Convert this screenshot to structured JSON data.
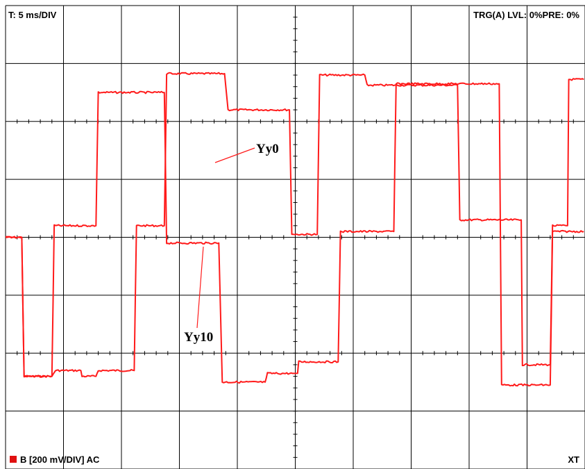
{
  "hud": {
    "timebase": "T: 5 ms/DIV",
    "trigger": "TRG(A) LVL: 0%PRE: 0%",
    "channel": "B [200 mV/DIV] AC",
    "mode": "XT"
  },
  "colors": {
    "trace": "#ff1a1a",
    "grid": "#000000",
    "channel_marker": "#e01010",
    "background": "#ffffff"
  },
  "chart_data": {
    "type": "line",
    "title": "",
    "xlabel": "",
    "ylabel": "",
    "xlim": [
      0,
      50
    ],
    "ylim": [
      -800,
      800
    ],
    "grid": true,
    "divisions": {
      "x": 10,
      "y": 8
    },
    "series": [
      {
        "name": "Yy0",
        "points": [
          [
            0,
            0
          ],
          [
            1.4,
            0
          ],
          [
            1.6,
            -480
          ],
          [
            4.0,
            -480
          ],
          [
            4.3,
            -460
          ],
          [
            6.5,
            -460
          ],
          [
            6.6,
            -480
          ],
          [
            7.8,
            -480
          ],
          [
            8.0,
            -460
          ],
          [
            11.1,
            -460
          ],
          [
            11.3,
            40
          ],
          [
            13.7,
            40
          ],
          [
            13.9,
            565
          ],
          [
            18.9,
            565
          ],
          [
            19.2,
            440
          ],
          [
            24.5,
            440
          ],
          [
            24.7,
            10
          ],
          [
            25.0,
            10
          ],
          [
            26.9,
            10
          ],
          [
            27.1,
            560
          ],
          [
            31.0,
            560
          ],
          [
            31.2,
            525
          ],
          [
            39.0,
            525
          ],
          [
            39.2,
            60
          ],
          [
            44.5,
            60
          ],
          [
            44.6,
            -440
          ],
          [
            47.0,
            -440
          ],
          [
            47.2,
            40
          ],
          [
            48.5,
            40
          ],
          [
            48.6,
            545
          ],
          [
            49.9,
            545
          ]
        ]
      },
      {
        "name": "Yy10",
        "points": [
          [
            0,
            0
          ],
          [
            1.4,
            0
          ],
          [
            1.6,
            -480
          ],
          [
            4.0,
            -480
          ],
          [
            4.2,
            40
          ],
          [
            7.8,
            40
          ],
          [
            8.0,
            500
          ],
          [
            13.7,
            500
          ],
          [
            13.9,
            -20
          ],
          [
            18.4,
            -20
          ],
          [
            18.7,
            -500
          ],
          [
            22.4,
            -500
          ],
          [
            22.6,
            -470
          ],
          [
            24.9,
            -470
          ],
          [
            25.2,
            -470
          ],
          [
            25.3,
            -430
          ],
          [
            28.7,
            -430
          ],
          [
            28.9,
            20
          ],
          [
            33.5,
            20
          ],
          [
            33.7,
            530
          ],
          [
            42.6,
            530
          ],
          [
            42.8,
            -510
          ],
          [
            47.0,
            -510
          ],
          [
            47.2,
            20
          ],
          [
            49.9,
            20
          ]
        ]
      }
    ],
    "annotations": [
      "Yy0",
      "Yy10"
    ]
  }
}
